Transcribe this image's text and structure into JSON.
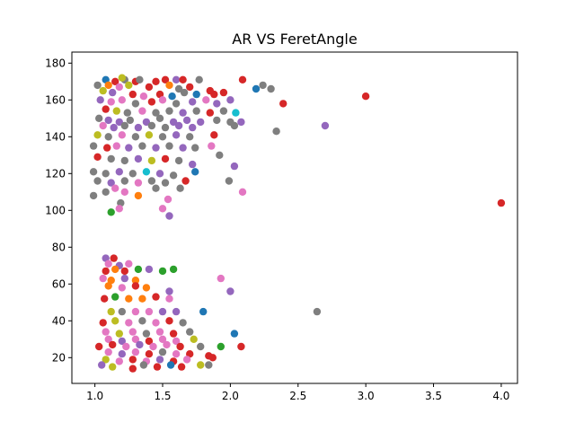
{
  "chart_data": {
    "type": "scatter",
    "title": "AR VS FeretAngle",
    "xlabel": "",
    "ylabel": "",
    "xlim": [
      0.83,
      4.12
    ],
    "ylim": [
      6,
      186
    ],
    "xticks": [
      "1.0",
      "1.5",
      "2.0",
      "2.5",
      "3.0",
      "3.5",
      "4.0"
    ],
    "yticks": [
      "20",
      "40",
      "60",
      "80",
      "100",
      "120",
      "140",
      "160",
      "180"
    ],
    "xtick_values": [
      1.0,
      1.5,
      2.0,
      2.5,
      3.0,
      3.5,
      4.0
    ],
    "ytick_values": [
      20,
      40,
      60,
      80,
      100,
      120,
      140,
      160,
      180
    ],
    "grid": false,
    "colors": [
      "#1f77b4",
      "#ff7f0e",
      "#2ca02c",
      "#d62728",
      "#9467bd",
      "#8c564b",
      "#e377c2",
      "#7f7f7f",
      "#bcbd22",
      "#17becf"
    ],
    "points": [
      {
        "x": 1.08,
        "y": 171,
        "c": 0
      },
      {
        "x": 1.15,
        "y": 170,
        "c": 3
      },
      {
        "x": 1.22,
        "y": 171,
        "c": 7
      },
      {
        "x": 1.3,
        "y": 170,
        "c": 3
      },
      {
        "x": 1.33,
        "y": 171,
        "c": 7
      },
      {
        "x": 1.45,
        "y": 170,
        "c": 3
      },
      {
        "x": 1.52,
        "y": 171,
        "c": 3
      },
      {
        "x": 1.6,
        "y": 171,
        "c": 4
      },
      {
        "x": 1.65,
        "y": 171,
        "c": 3
      },
      {
        "x": 1.77,
        "y": 171,
        "c": 7
      },
      {
        "x": 2.09,
        "y": 171,
        "c": 3
      },
      {
        "x": 1.2,
        "y": 172,
        "c": 8
      },
      {
        "x": 1.02,
        "y": 168,
        "c": 7
      },
      {
        "x": 1.1,
        "y": 168,
        "c": 1
      },
      {
        "x": 1.18,
        "y": 167,
        "c": 6
      },
      {
        "x": 1.25,
        "y": 168,
        "c": 8
      },
      {
        "x": 1.4,
        "y": 167,
        "c": 3
      },
      {
        "x": 1.55,
        "y": 168,
        "c": 1
      },
      {
        "x": 1.62,
        "y": 166,
        "c": 7
      },
      {
        "x": 1.7,
        "y": 167,
        "c": 3
      },
      {
        "x": 2.19,
        "y": 166,
        "c": 0
      },
      {
        "x": 2.24,
        "y": 168,
        "c": 7
      },
      {
        "x": 2.3,
        "y": 166,
        "c": 7
      },
      {
        "x": 1.06,
        "y": 165,
        "c": 8
      },
      {
        "x": 1.13,
        "y": 164,
        "c": 4
      },
      {
        "x": 1.28,
        "y": 163,
        "c": 3
      },
      {
        "x": 1.36,
        "y": 162,
        "c": 6
      },
      {
        "x": 1.48,
        "y": 163,
        "c": 3
      },
      {
        "x": 1.57,
        "y": 162,
        "c": 0
      },
      {
        "x": 1.66,
        "y": 164,
        "c": 7
      },
      {
        "x": 1.75,
        "y": 163,
        "c": 0
      },
      {
        "x": 1.88,
        "y": 163,
        "c": 3
      },
      {
        "x": 1.95,
        "y": 164,
        "c": 3
      },
      {
        "x": 1.85,
        "y": 165,
        "c": 3
      },
      {
        "x": 3.0,
        "y": 162,
        "c": 3
      },
      {
        "x": 1.04,
        "y": 160,
        "c": 4
      },
      {
        "x": 1.12,
        "y": 159,
        "c": 6
      },
      {
        "x": 1.2,
        "y": 160,
        "c": 6
      },
      {
        "x": 1.3,
        "y": 158,
        "c": 7
      },
      {
        "x": 1.42,
        "y": 159,
        "c": 3
      },
      {
        "x": 1.5,
        "y": 160,
        "c": 6
      },
      {
        "x": 1.6,
        "y": 158,
        "c": 7
      },
      {
        "x": 1.72,
        "y": 159,
        "c": 4
      },
      {
        "x": 1.82,
        "y": 160,
        "c": 6
      },
      {
        "x": 1.9,
        "y": 158,
        "c": 4
      },
      {
        "x": 2.0,
        "y": 160,
        "c": 4
      },
      {
        "x": 2.39,
        "y": 158,
        "c": 3
      },
      {
        "x": 1.08,
        "y": 155,
        "c": 3
      },
      {
        "x": 1.16,
        "y": 154,
        "c": 8
      },
      {
        "x": 1.24,
        "y": 153,
        "c": 7
      },
      {
        "x": 1.35,
        "y": 154,
        "c": 6
      },
      {
        "x": 1.45,
        "y": 153,
        "c": 7
      },
      {
        "x": 1.55,
        "y": 154,
        "c": 7
      },
      {
        "x": 1.65,
        "y": 153,
        "c": 4
      },
      {
        "x": 1.75,
        "y": 154,
        "c": 7
      },
      {
        "x": 1.85,
        "y": 153,
        "c": 3
      },
      {
        "x": 1.95,
        "y": 154,
        "c": 7
      },
      {
        "x": 2.04,
        "y": 153,
        "c": 9
      },
      {
        "x": 1.03,
        "y": 150,
        "c": 7
      },
      {
        "x": 1.1,
        "y": 149,
        "c": 4
      },
      {
        "x": 1.18,
        "y": 148,
        "c": 4
      },
      {
        "x": 1.26,
        "y": 149,
        "c": 7
      },
      {
        "x": 1.38,
        "y": 148,
        "c": 4
      },
      {
        "x": 1.48,
        "y": 150,
        "c": 7
      },
      {
        "x": 1.58,
        "y": 148,
        "c": 4
      },
      {
        "x": 1.68,
        "y": 149,
        "c": 4
      },
      {
        "x": 1.78,
        "y": 148,
        "c": 4
      },
      {
        "x": 1.9,
        "y": 149,
        "c": 7
      },
      {
        "x": 2.0,
        "y": 148,
        "c": 7
      },
      {
        "x": 2.08,
        "y": 148,
        "c": 4
      },
      {
        "x": 1.06,
        "y": 146,
        "c": 6
      },
      {
        "x": 1.14,
        "y": 145,
        "c": 4
      },
      {
        "x": 1.22,
        "y": 146,
        "c": 7
      },
      {
        "x": 1.32,
        "y": 145,
        "c": 4
      },
      {
        "x": 1.42,
        "y": 146,
        "c": 7
      },
      {
        "x": 1.52,
        "y": 145,
        "c": 7
      },
      {
        "x": 1.62,
        "y": 146,
        "c": 4
      },
      {
        "x": 1.72,
        "y": 145,
        "c": 4
      },
      {
        "x": 2.03,
        "y": 146,
        "c": 7
      },
      {
        "x": 2.7,
        "y": 146,
        "c": 4
      },
      {
        "x": 2.34,
        "y": 143,
        "c": 7
      },
      {
        "x": 1.02,
        "y": 141,
        "c": 8
      },
      {
        "x": 1.1,
        "y": 140,
        "c": 7
      },
      {
        "x": 1.2,
        "y": 141,
        "c": 6
      },
      {
        "x": 1.3,
        "y": 140,
        "c": 7
      },
      {
        "x": 1.4,
        "y": 141,
        "c": 8
      },
      {
        "x": 1.5,
        "y": 140,
        "c": 7
      },
      {
        "x": 1.6,
        "y": 141,
        "c": 4
      },
      {
        "x": 1.7,
        "y": 140,
        "c": 7
      },
      {
        "x": 1.88,
        "y": 141,
        "c": 3
      },
      {
        "x": 0.99,
        "y": 135,
        "c": 7
      },
      {
        "x": 1.09,
        "y": 134,
        "c": 3
      },
      {
        "x": 1.16,
        "y": 135,
        "c": 6
      },
      {
        "x": 1.25,
        "y": 134,
        "c": 4
      },
      {
        "x": 1.35,
        "y": 135,
        "c": 7
      },
      {
        "x": 1.45,
        "y": 134,
        "c": 4
      },
      {
        "x": 1.55,
        "y": 135,
        "c": 7
      },
      {
        "x": 1.65,
        "y": 134,
        "c": 4
      },
      {
        "x": 1.74,
        "y": 134,
        "c": 7
      },
      {
        "x": 1.86,
        "y": 135,
        "c": 6
      },
      {
        "x": 1.02,
        "y": 129,
        "c": 3
      },
      {
        "x": 1.12,
        "y": 128,
        "c": 7
      },
      {
        "x": 1.22,
        "y": 127,
        "c": 7
      },
      {
        "x": 1.32,
        "y": 128,
        "c": 4
      },
      {
        "x": 1.42,
        "y": 127,
        "c": 8
      },
      {
        "x": 1.52,
        "y": 128,
        "c": 3
      },
      {
        "x": 1.62,
        "y": 127,
        "c": 7
      },
      {
        "x": 1.72,
        "y": 125,
        "c": 4
      },
      {
        "x": 1.92,
        "y": 130,
        "c": 7
      },
      {
        "x": 2.03,
        "y": 124,
        "c": 4
      },
      {
        "x": 0.99,
        "y": 121,
        "c": 7
      },
      {
        "x": 1.08,
        "y": 120,
        "c": 7
      },
      {
        "x": 1.18,
        "y": 121,
        "c": 4
      },
      {
        "x": 1.28,
        "y": 120,
        "c": 7
      },
      {
        "x": 1.38,
        "y": 121,
        "c": 9
      },
      {
        "x": 1.48,
        "y": 120,
        "c": 4
      },
      {
        "x": 1.58,
        "y": 119,
        "c": 7
      },
      {
        "x": 1.74,
        "y": 121,
        "c": 0
      },
      {
        "x": 1.02,
        "y": 116,
        "c": 7
      },
      {
        "x": 1.12,
        "y": 115,
        "c": 4
      },
      {
        "x": 1.22,
        "y": 116,
        "c": 7
      },
      {
        "x": 1.32,
        "y": 115,
        "c": 6
      },
      {
        "x": 1.42,
        "y": 116,
        "c": 7
      },
      {
        "x": 1.52,
        "y": 115,
        "c": 7
      },
      {
        "x": 1.67,
        "y": 116,
        "c": 3
      },
      {
        "x": 1.99,
        "y": 116,
        "c": 7
      },
      {
        "x": 0.99,
        "y": 108,
        "c": 7
      },
      {
        "x": 1.08,
        "y": 110,
        "c": 7
      },
      {
        "x": 1.15,
        "y": 112,
        "c": 6
      },
      {
        "x": 1.22,
        "y": 110,
        "c": 6
      },
      {
        "x": 1.32,
        "y": 108,
        "c": 1
      },
      {
        "x": 1.45,
        "y": 112,
        "c": 7
      },
      {
        "x": 1.54,
        "y": 106,
        "c": 6
      },
      {
        "x": 1.63,
        "y": 112,
        "c": 7
      },
      {
        "x": 2.09,
        "y": 110,
        "c": 6
      },
      {
        "x": 1.19,
        "y": 104,
        "c": 7
      },
      {
        "x": 1.18,
        "y": 101,
        "c": 6
      },
      {
        "x": 1.12,
        "y": 99,
        "c": 2
      },
      {
        "x": 1.5,
        "y": 101,
        "c": 6
      },
      {
        "x": 1.55,
        "y": 97,
        "c": 4
      },
      {
        "x": 4.0,
        "y": 104,
        "c": 3
      },
      {
        "x": 1.08,
        "y": 74,
        "c": 4
      },
      {
        "x": 1.14,
        "y": 74,
        "c": 3
      },
      {
        "x": 1.1,
        "y": 71,
        "c": 6
      },
      {
        "x": 1.18,
        "y": 70,
        "c": 4
      },
      {
        "x": 1.25,
        "y": 71,
        "c": 6
      },
      {
        "x": 1.08,
        "y": 67,
        "c": 3
      },
      {
        "x": 1.15,
        "y": 68,
        "c": 1
      },
      {
        "x": 1.22,
        "y": 67,
        "c": 3
      },
      {
        "x": 1.32,
        "y": 68,
        "c": 2
      },
      {
        "x": 1.4,
        "y": 68,
        "c": 4
      },
      {
        "x": 1.5,
        "y": 67,
        "c": 2
      },
      {
        "x": 1.58,
        "y": 68,
        "c": 2
      },
      {
        "x": 1.06,
        "y": 63,
        "c": 6
      },
      {
        "x": 1.12,
        "y": 62,
        "c": 1
      },
      {
        "x": 1.22,
        "y": 63,
        "c": 4
      },
      {
        "x": 1.3,
        "y": 62,
        "c": 1
      },
      {
        "x": 1.93,
        "y": 63,
        "c": 6
      },
      {
        "x": 1.1,
        "y": 59,
        "c": 1
      },
      {
        "x": 1.2,
        "y": 58,
        "c": 6
      },
      {
        "x": 1.3,
        "y": 59,
        "c": 3
      },
      {
        "x": 1.38,
        "y": 58,
        "c": 1
      },
      {
        "x": 1.55,
        "y": 56,
        "c": 4
      },
      {
        "x": 2.0,
        "y": 56,
        "c": 4
      },
      {
        "x": 1.07,
        "y": 52,
        "c": 3
      },
      {
        "x": 1.15,
        "y": 53,
        "c": 2
      },
      {
        "x": 1.25,
        "y": 52,
        "c": 1
      },
      {
        "x": 1.35,
        "y": 52,
        "c": 1
      },
      {
        "x": 1.45,
        "y": 53,
        "c": 3
      },
      {
        "x": 1.55,
        "y": 52,
        "c": 6
      },
      {
        "x": 1.12,
        "y": 45,
        "c": 8
      },
      {
        "x": 1.2,
        "y": 45,
        "c": 7
      },
      {
        "x": 1.3,
        "y": 45,
        "c": 6
      },
      {
        "x": 1.4,
        "y": 45,
        "c": 6
      },
      {
        "x": 1.5,
        "y": 45,
        "c": 4
      },
      {
        "x": 1.6,
        "y": 45,
        "c": 4
      },
      {
        "x": 1.8,
        "y": 45,
        "c": 0
      },
      {
        "x": 2.64,
        "y": 45,
        "c": 7
      },
      {
        "x": 1.06,
        "y": 39,
        "c": 3
      },
      {
        "x": 1.15,
        "y": 40,
        "c": 8
      },
      {
        "x": 1.25,
        "y": 39,
        "c": 6
      },
      {
        "x": 1.35,
        "y": 40,
        "c": 7
      },
      {
        "x": 1.45,
        "y": 39,
        "c": 6
      },
      {
        "x": 1.55,
        "y": 40,
        "c": 3
      },
      {
        "x": 1.65,
        "y": 39,
        "c": 7
      },
      {
        "x": 1.08,
        "y": 34,
        "c": 6
      },
      {
        "x": 1.18,
        "y": 33,
        "c": 8
      },
      {
        "x": 1.28,
        "y": 34,
        "c": 6
      },
      {
        "x": 1.38,
        "y": 33,
        "c": 7
      },
      {
        "x": 1.48,
        "y": 34,
        "c": 6
      },
      {
        "x": 1.58,
        "y": 33,
        "c": 3
      },
      {
        "x": 1.7,
        "y": 34,
        "c": 7
      },
      {
        "x": 2.03,
        "y": 33,
        "c": 0
      },
      {
        "x": 1.1,
        "y": 30,
        "c": 6
      },
      {
        "x": 1.2,
        "y": 29,
        "c": 4
      },
      {
        "x": 1.3,
        "y": 30,
        "c": 6
      },
      {
        "x": 1.4,
        "y": 29,
        "c": 3
      },
      {
        "x": 1.5,
        "y": 30,
        "c": 6
      },
      {
        "x": 1.6,
        "y": 29,
        "c": 6
      },
      {
        "x": 1.73,
        "y": 30,
        "c": 8
      },
      {
        "x": 1.03,
        "y": 26,
        "c": 3
      },
      {
        "x": 1.13,
        "y": 27,
        "c": 3
      },
      {
        "x": 1.23,
        "y": 26,
        "c": 6
      },
      {
        "x": 1.33,
        "y": 27,
        "c": 4
      },
      {
        "x": 1.43,
        "y": 26,
        "c": 6
      },
      {
        "x": 1.53,
        "y": 27,
        "c": 6
      },
      {
        "x": 1.63,
        "y": 26,
        "c": 3
      },
      {
        "x": 1.78,
        "y": 26,
        "c": 7
      },
      {
        "x": 1.93,
        "y": 26,
        "c": 2
      },
      {
        "x": 2.08,
        "y": 26,
        "c": 3
      },
      {
        "x": 1.1,
        "y": 23,
        "c": 6
      },
      {
        "x": 1.2,
        "y": 22,
        "c": 4
      },
      {
        "x": 1.3,
        "y": 23,
        "c": 6
      },
      {
        "x": 1.4,
        "y": 22,
        "c": 3
      },
      {
        "x": 1.5,
        "y": 23,
        "c": 7
      },
      {
        "x": 1.6,
        "y": 22,
        "c": 6
      },
      {
        "x": 1.7,
        "y": 22,
        "c": 3
      },
      {
        "x": 1.84,
        "y": 21,
        "c": 3
      },
      {
        "x": 1.08,
        "y": 19,
        "c": 8
      },
      {
        "x": 1.18,
        "y": 18,
        "c": 6
      },
      {
        "x": 1.28,
        "y": 19,
        "c": 3
      },
      {
        "x": 1.38,
        "y": 18,
        "c": 6
      },
      {
        "x": 1.48,
        "y": 19,
        "c": 4
      },
      {
        "x": 1.58,
        "y": 18,
        "c": 3
      },
      {
        "x": 1.68,
        "y": 19,
        "c": 6
      },
      {
        "x": 1.87,
        "y": 20,
        "c": 3
      },
      {
        "x": 1.05,
        "y": 16,
        "c": 4
      },
      {
        "x": 1.13,
        "y": 15,
        "c": 8
      },
      {
        "x": 1.28,
        "y": 14,
        "c": 3
      },
      {
        "x": 1.36,
        "y": 16,
        "c": 7
      },
      {
        "x": 1.46,
        "y": 15,
        "c": 3
      },
      {
        "x": 1.56,
        "y": 16,
        "c": 0
      },
      {
        "x": 1.64,
        "y": 15,
        "c": 3
      },
      {
        "x": 1.78,
        "y": 16,
        "c": 8
      },
      {
        "x": 1.84,
        "y": 16,
        "c": 7
      }
    ]
  }
}
